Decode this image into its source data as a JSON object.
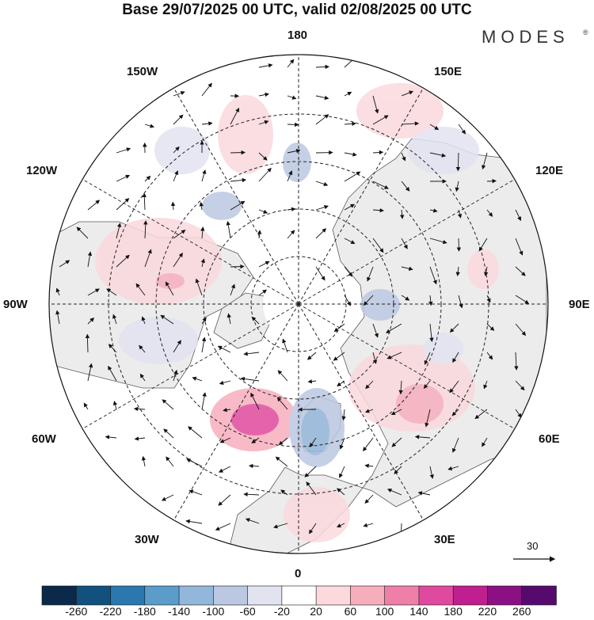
{
  "title": "Base 29/07/2025 00 UTC, valid 02/08/2025 00 UTC",
  "brand": {
    "name": "MODES",
    "mark": "®"
  },
  "longitude_labels": {
    "lon_180": "180",
    "lon_150w": "150W",
    "lon_150e": "150E",
    "lon_120w": "120W",
    "lon_120e": "120E",
    "lon_90w": "90W",
    "lon_90e": "90E",
    "lon_60w": "60W",
    "lon_60e": "60E",
    "lon_30w": "30W",
    "lon_30e": "30E",
    "lon_0": "0"
  },
  "reference_vector": {
    "label": "30"
  },
  "colorbar": {
    "ticks": [
      "-260",
      "-220",
      "-180",
      "-140",
      "-100",
      "-60",
      "-20",
      "20",
      "60",
      "100",
      "140",
      "180",
      "220",
      "260"
    ],
    "colors": [
      "#0b2a4a",
      "#12507d",
      "#2a78ad",
      "#5b9ccb",
      "#93b7da",
      "#bcc8e2",
      "#e2e3f0",
      "#ffffff",
      "#fbd9dd",
      "#f6aebd",
      "#ee7fa9",
      "#e04a9e",
      "#c01f8f",
      "#8a1083",
      "#560a6e"
    ]
  },
  "colors": {
    "land": "#ececec",
    "ocean": "#ffffff",
    "coast": "#5a5a5a",
    "grid": "#222222",
    "arrow": "#111111"
  }
}
